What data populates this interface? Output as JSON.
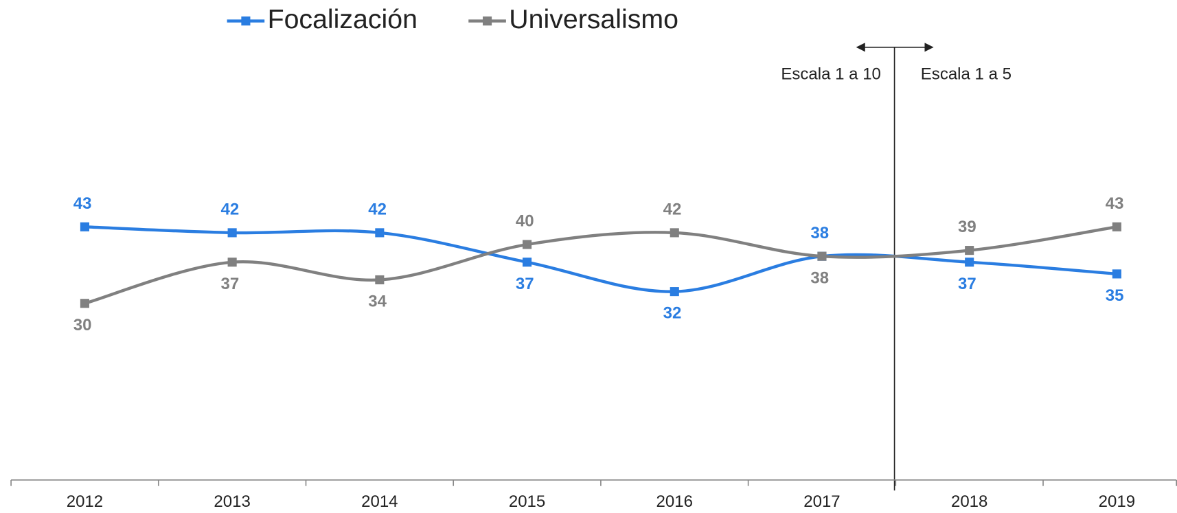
{
  "chart_data": {
    "type": "line",
    "categories": [
      "2012",
      "2013",
      "2014",
      "2015",
      "2016",
      "2017",
      "2018",
      "2019"
    ],
    "series": [
      {
        "name": "Focalización",
        "color": "#2a7de1",
        "values": [
          43,
          42,
          42,
          37,
          32,
          38,
          37,
          35
        ]
      },
      {
        "name": "Universalismo",
        "color": "#808080",
        "values": [
          30,
          37,
          34,
          40,
          42,
          38,
          39,
          43
        ]
      }
    ],
    "annotations": [
      "Escala 1 a 10",
      "Escala 1 a 5"
    ],
    "legend": "top"
  }
}
